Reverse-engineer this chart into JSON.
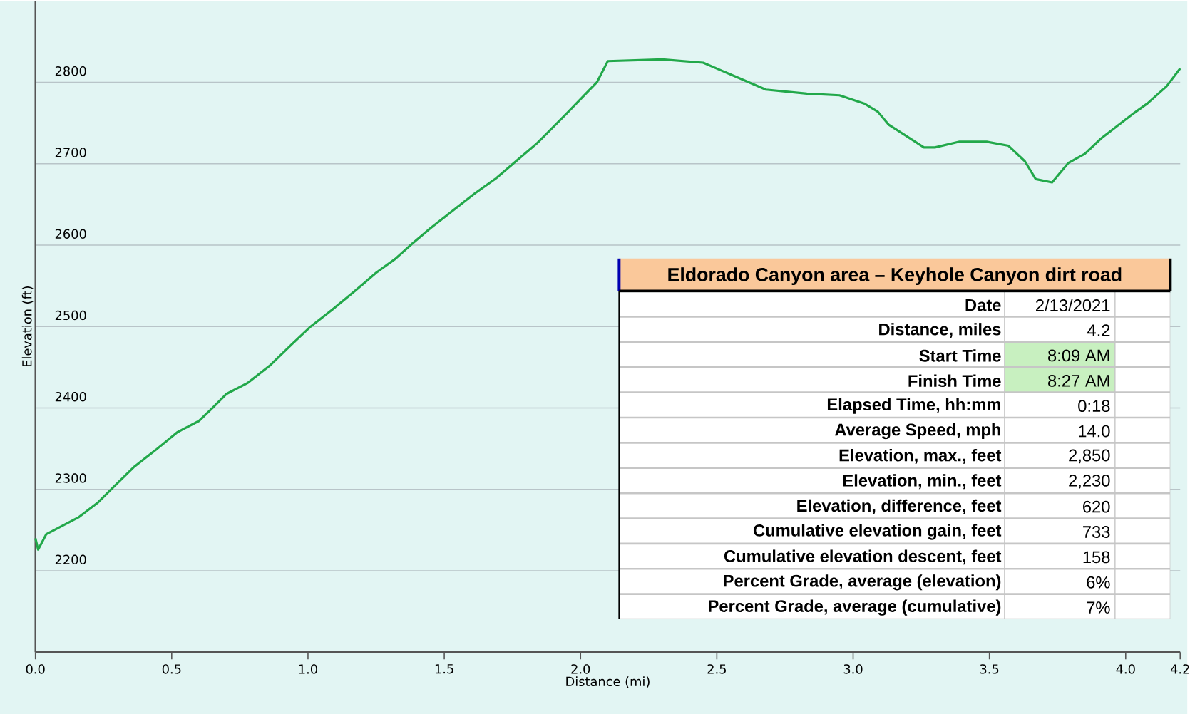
{
  "chart_data": {
    "type": "line",
    "title": "Eldorado Canyon area – Keyhole Canyon dirt road",
    "xlabel": "Distance  (mi)",
    "ylabel": "Elevation (ft)",
    "x": [
      0,
      0.01,
      0.04,
      0.08,
      0.16,
      0.23,
      0.29,
      0.36,
      0.44,
      0.52,
      0.6,
      0.65,
      0.7,
      0.78,
      0.86,
      0.94,
      1.01,
      1.09,
      1.17,
      1.25,
      1.32,
      1.38,
      1.45,
      1.53,
      1.61,
      1.69,
      1.77,
      1.84,
      1.95,
      2.06,
      2.1,
      2.3,
      2.45,
      2.68,
      2.83,
      2.95,
      3.04,
      3.09,
      3.13,
      3.26,
      3.3,
      3.39,
      3.49,
      3.57,
      3.63,
      3.67,
      3.73,
      3.79,
      3.85,
      3.91,
      4.03,
      4.08,
      4.15,
      4.2
    ],
    "series": [
      {
        "color": "#22a84a",
        "values": [
          2240,
          2226,
          2245,
          2252,
          2266,
          2284,
          2304,
          2327,
          2348,
          2370,
          2384,
          2400,
          2417,
          2431,
          2452,
          2478,
          2500,
          2521,
          2543,
          2566,
          2583,
          2601,
          2621,
          2642,
          2663,
          2682,
          2705,
          2725,
          2762,
          2800,
          2826,
          2828,
          2824,
          2791,
          2786,
          2784,
          2774,
          2764,
          2748,
          2720,
          2720,
          2727,
          2727,
          2722,
          2703,
          2681,
          2677,
          2701,
          2712,
          2731,
          2762,
          2774,
          2795,
          2817
        ]
      }
    ],
    "xlim": [
      0,
      4.2
    ],
    "ylim": [
      2100,
      2900
    ],
    "xticks": [
      {
        "value": 0,
        "label": "0.0"
      },
      {
        "value": 0.5,
        "label": "0.5"
      },
      {
        "value": 1,
        "label": "1.0"
      },
      {
        "value": 1.5,
        "label": "1.5"
      },
      {
        "value": 2,
        "label": "2.0"
      },
      {
        "value": 2.5,
        "label": "2.5"
      },
      {
        "value": 3,
        "label": "3.0"
      },
      {
        "value": 3.5,
        "label": "3.5"
      },
      {
        "value": 4,
        "label": "4.0"
      },
      {
        "value": 4.2,
        "label": "4.2"
      }
    ],
    "yticks": [
      2200,
      2300,
      2400,
      2500,
      2600,
      2700,
      2800
    ],
    "grid": "y",
    "annotations": [
      "Date",
      "2/13/2021",
      "Distance, miles",
      "4.2",
      "Start Time",
      "8:09 AM",
      "Finish Time",
      "8:27 AM",
      "Elapsed Time, hh:mm",
      "0:18",
      "Average Speed, mph",
      "14.0",
      "Elevation, max., feet",
      "2,850",
      "Elevation, min., feet",
      "2,230",
      "Elevation, difference, feet",
      "620",
      "Cumulative elevation gain, feet",
      "733",
      "Cumulative elevation descent, feet",
      "158",
      "Percent Grade, average (elevation)",
      "6%",
      "Percent Grade, average (cumulative)",
      "7%"
    ]
  }
}
